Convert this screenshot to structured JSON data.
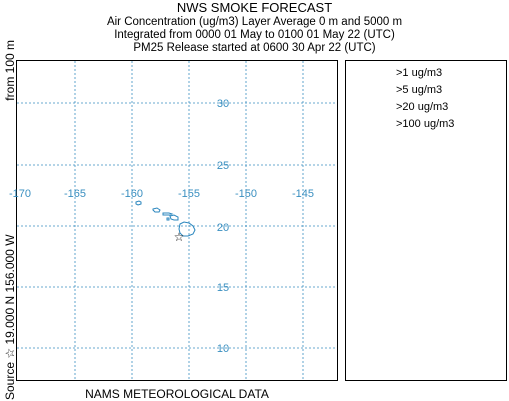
{
  "header": {
    "title": "NWS SMOKE FORECAST",
    "line1": "Air Concentration (ug/m3) Layer Average    0 m and  5000 m",
    "line2": "Integrated from 0000 01 May to 0100 01 May 22 (UTC)",
    "line3": "PM25 Release started at 0600 30 Apr 22 (UTC)"
  },
  "side_label": {
    "source": "Source ☆  19.000 N 156.000  W",
    "from": "from   100 m"
  },
  "map": {
    "grid_color": "#3a8fc0",
    "coast_color": "#2a86be",
    "lon_labels": [
      "-170",
      "-165",
      "-160",
      "-155",
      "-150",
      "-145"
    ],
    "lat_labels": [
      "30",
      "25",
      "20",
      "15",
      "10"
    ],
    "source_marker": "star-icon"
  },
  "legend": {
    "items": [
      ">1 ug/m3",
      ">5 ug/m3",
      ">20 ug/m3",
      ">100 ug/m3"
    ]
  },
  "footer": {
    "text": "NAMS METEOROLOGICAL DATA"
  }
}
